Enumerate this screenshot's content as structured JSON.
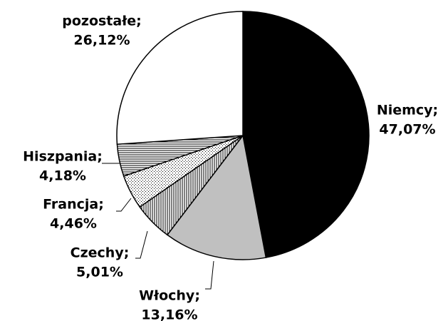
{
  "chart_data": {
    "type": "pie",
    "categories": [
      "Niemcy;",
      "Włochy;",
      "Czechy;",
      "Francja;",
      "Hiszpania;",
      "pozostałe;"
    ],
    "values": [
      47.07,
      13.16,
      5.01,
      4.46,
      4.18,
      26.12
    ],
    "value_labels": [
      "47,07%",
      "13,16%",
      "5,01%",
      "4,46%",
      "4,18%",
      "26,12%"
    ],
    "colors": [
      "#000000",
      "#c0c0c0",
      "#ffffff",
      "#ffffff",
      "#ffffff",
      "#ffffff"
    ],
    "patterns": [
      "solid",
      "solid",
      "vertical-lines",
      "dots",
      "horizontal-lines",
      "solid"
    ]
  }
}
